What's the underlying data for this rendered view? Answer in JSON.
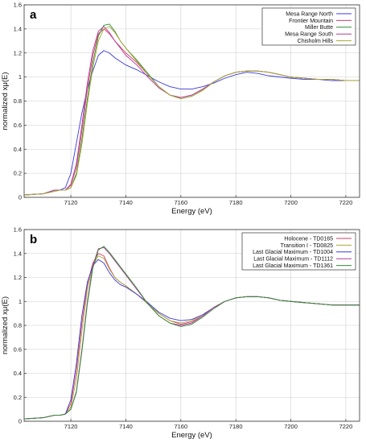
{
  "chart_data": [
    {
      "panel_label": "a",
      "type": "line",
      "xlabel": "Energy    (eV)",
      "ylabel": "normalized xμ(E)",
      "xlim": [
        7103,
        7225
      ],
      "ylim": [
        0,
        1.6
      ],
      "xticks": [
        "7120",
        "7140",
        "7160",
        "7180",
        "7200",
        "7220"
      ],
      "yticks": [
        "0",
        "0.2",
        "0.4",
        "0.6",
        "0.8",
        "1",
        "1.2",
        "1.4",
        "1.6"
      ],
      "grid": true,
      "legend_position": "top-right",
      "series": [
        {
          "name": "Mesa Range North",
          "color": "#3a3ad8",
          "x": [
            7103,
            7110,
            7114,
            7116,
            7118,
            7120,
            7122,
            7124,
            7126,
            7128,
            7130,
            7132,
            7134,
            7136,
            7138,
            7140,
            7144,
            7148,
            7152,
            7156,
            7160,
            7164,
            7168,
            7172,
            7176,
            7180,
            7184,
            7188,
            7192,
            7196,
            7200,
            7205,
            7210,
            7215,
            7220,
            7225
          ],
          "y": [
            0.02,
            0.03,
            0.06,
            0.06,
            0.08,
            0.2,
            0.45,
            0.7,
            0.9,
            1.05,
            1.18,
            1.22,
            1.2,
            1.16,
            1.13,
            1.1,
            1.06,
            1.01,
            0.96,
            0.92,
            0.9,
            0.9,
            0.92,
            0.95,
            0.99,
            1.02,
            1.04,
            1.03,
            1.01,
            1.0,
            0.99,
            0.98,
            0.98,
            0.97,
            0.97,
            0.97
          ]
        },
        {
          "name": "Frontier Mountain",
          "color": "#d63a6a",
          "x": [
            7103,
            7110,
            7114,
            7116,
            7118,
            7120,
            7122,
            7124,
            7126,
            7128,
            7130,
            7132,
            7134,
            7136,
            7138,
            7140,
            7144,
            7148,
            7152,
            7156,
            7160,
            7164,
            7168,
            7172,
            7176,
            7180,
            7184,
            7188,
            7192,
            7196,
            7200,
            7205,
            7210,
            7215,
            7220,
            7225
          ],
          "y": [
            0.02,
            0.03,
            0.06,
            0.06,
            0.06,
            0.1,
            0.25,
            0.55,
            0.9,
            1.18,
            1.36,
            1.4,
            1.36,
            1.3,
            1.25,
            1.2,
            1.12,
            1.02,
            0.92,
            0.85,
            0.83,
            0.85,
            0.9,
            0.96,
            1.01,
            1.04,
            1.05,
            1.05,
            1.04,
            1.02,
            1.0,
            0.99,
            0.98,
            0.98,
            0.97,
            0.97
          ]
        },
        {
          "name": "Miller Butte",
          "color": "#2e8b2e",
          "x": [
            7103,
            7110,
            7114,
            7116,
            7118,
            7120,
            7122,
            7124,
            7126,
            7128,
            7130,
            7132,
            7134,
            7136,
            7138,
            7140,
            7144,
            7148,
            7152,
            7156,
            7160,
            7164,
            7168,
            7172,
            7176,
            7180,
            7184,
            7188,
            7192,
            7196,
            7200,
            7205,
            7210,
            7215,
            7220,
            7225
          ],
          "y": [
            0.02,
            0.03,
            0.05,
            0.06,
            0.06,
            0.08,
            0.2,
            0.48,
            0.82,
            1.12,
            1.34,
            1.43,
            1.44,
            1.38,
            1.3,
            1.24,
            1.14,
            1.03,
            0.92,
            0.85,
            0.82,
            0.84,
            0.89,
            0.96,
            1.01,
            1.04,
            1.05,
            1.05,
            1.04,
            1.02,
            1.0,
            0.99,
            0.98,
            0.98,
            0.97,
            0.97
          ]
        },
        {
          "name": "Mesa Range South",
          "color": "#b03a9a",
          "x": [
            7103,
            7110,
            7114,
            7116,
            7118,
            7120,
            7122,
            7124,
            7126,
            7128,
            7130,
            7132,
            7134,
            7136,
            7138,
            7140,
            7144,
            7148,
            7152,
            7156,
            7160,
            7164,
            7168,
            7172,
            7176,
            7180,
            7184,
            7188,
            7192,
            7196,
            7200,
            7205,
            7210,
            7215,
            7220,
            7225
          ],
          "y": [
            0.02,
            0.03,
            0.06,
            0.06,
            0.06,
            0.11,
            0.28,
            0.6,
            0.95,
            1.22,
            1.38,
            1.42,
            1.37,
            1.3,
            1.24,
            1.18,
            1.1,
            1.0,
            0.91,
            0.85,
            0.83,
            0.85,
            0.9,
            0.96,
            1.01,
            1.04,
            1.05,
            1.05,
            1.04,
            1.02,
            1.0,
            0.99,
            0.98,
            0.98,
            0.97,
            0.97
          ]
        },
        {
          "name": "Chisholm Hills",
          "color": "#a8a832",
          "x": [
            7103,
            7110,
            7114,
            7116,
            7118,
            7120,
            7122,
            7124,
            7126,
            7128,
            7130,
            7132,
            7134,
            7136,
            7138,
            7140,
            7144,
            7148,
            7152,
            7156,
            7160,
            7164,
            7168,
            7172,
            7176,
            7180,
            7184,
            7188,
            7192,
            7196,
            7200,
            7205,
            7210,
            7215,
            7220,
            7225
          ],
          "y": [
            0.02,
            0.03,
            0.05,
            0.06,
            0.06,
            0.08,
            0.18,
            0.44,
            0.78,
            1.08,
            1.3,
            1.4,
            1.42,
            1.37,
            1.3,
            1.24,
            1.13,
            1.02,
            0.92,
            0.85,
            0.82,
            0.84,
            0.89,
            0.96,
            1.01,
            1.04,
            1.05,
            1.05,
            1.04,
            1.02,
            1.0,
            0.99,
            0.98,
            0.98,
            0.97,
            0.97
          ]
        }
      ]
    },
    {
      "panel_label": "b",
      "type": "line",
      "xlabel": "Energy    (eV)",
      "ylabel": "normalized xμ(E)",
      "xlim": [
        7103,
        7225
      ],
      "ylim": [
        0,
        1.6
      ],
      "xticks": [
        "7120",
        "7140",
        "7160",
        "7180",
        "7200",
        "7220"
      ],
      "yticks": [
        "0",
        "0.2",
        "0.4",
        "0.6",
        "0.8",
        "1",
        "1.2",
        "1.4",
        "1.6"
      ],
      "grid": true,
      "legend_position": "top-right",
      "series": [
        {
          "name": "Holocene - TD0165",
          "color": "#d63a6a",
          "x": [
            7103,
            7110,
            7114,
            7116,
            7118,
            7120,
            7122,
            7124,
            7126,
            7128,
            7130,
            7132,
            7134,
            7136,
            7138,
            7140,
            7144,
            7148,
            7152,
            7156,
            7160,
            7164,
            7168,
            7172,
            7176,
            7180,
            7184,
            7188,
            7192,
            7196,
            7200,
            7205,
            7210,
            7215,
            7220,
            7225
          ],
          "y": [
            0.02,
            0.03,
            0.05,
            0.05,
            0.06,
            0.15,
            0.42,
            0.82,
            1.14,
            1.32,
            1.4,
            1.38,
            1.28,
            1.2,
            1.16,
            1.13,
            1.06,
            0.98,
            0.9,
            0.84,
            0.81,
            0.83,
            0.88,
            0.95,
            1.0,
            1.03,
            1.04,
            1.04,
            1.03,
            1.01,
            1.0,
            0.99,
            0.98,
            0.97,
            0.97,
            0.97
          ]
        },
        {
          "name": "Transition I - TD0825",
          "color": "#a8a832",
          "x": [
            7103,
            7110,
            7114,
            7116,
            7118,
            7120,
            7122,
            7124,
            7126,
            7128,
            7130,
            7132,
            7134,
            7136,
            7138,
            7140,
            7144,
            7148,
            7152,
            7156,
            7160,
            7164,
            7168,
            7172,
            7176,
            7180,
            7184,
            7188,
            7192,
            7196,
            7200,
            7205,
            7210,
            7215,
            7220,
            7225
          ],
          "y": [
            0.02,
            0.03,
            0.05,
            0.05,
            0.06,
            0.12,
            0.35,
            0.75,
            1.1,
            1.3,
            1.38,
            1.36,
            1.27,
            1.2,
            1.16,
            1.13,
            1.06,
            0.98,
            0.9,
            0.84,
            0.82,
            0.84,
            0.89,
            0.95,
            1.0,
            1.03,
            1.04,
            1.04,
            1.03,
            1.01,
            1.0,
            0.99,
            0.98,
            0.97,
            0.97,
            0.97
          ]
        },
        {
          "name": "Last Glacial Maximum - TD1004",
          "color": "#3a3ad8",
          "x": [
            7103,
            7110,
            7114,
            7116,
            7118,
            7120,
            7122,
            7124,
            7126,
            7128,
            7130,
            7132,
            7134,
            7136,
            7138,
            7140,
            7144,
            7148,
            7152,
            7156,
            7160,
            7164,
            7168,
            7172,
            7176,
            7180,
            7184,
            7188,
            7192,
            7196,
            7200,
            7205,
            7210,
            7215,
            7220,
            7225
          ],
          "y": [
            0.02,
            0.03,
            0.05,
            0.05,
            0.06,
            0.18,
            0.48,
            0.88,
            1.16,
            1.3,
            1.35,
            1.32,
            1.24,
            1.18,
            1.14,
            1.12,
            1.06,
            0.99,
            0.91,
            0.86,
            0.84,
            0.85,
            0.89,
            0.95,
            1.0,
            1.03,
            1.04,
            1.04,
            1.03,
            1.01,
            1.0,
            0.99,
            0.98,
            0.97,
            0.97,
            0.97
          ]
        },
        {
          "name": "Last Glacial Maximum - TD1112",
          "color": "#b03a9a",
          "x": [
            7103,
            7110,
            7114,
            7116,
            7118,
            7120,
            7122,
            7124,
            7126,
            7128,
            7130,
            7132,
            7134,
            7136,
            7138,
            7140,
            7144,
            7148,
            7152,
            7156,
            7160,
            7164,
            7168,
            7172,
            7176,
            7180,
            7184,
            7188,
            7192,
            7196,
            7200,
            7205,
            7210,
            7215,
            7220,
            7225
          ],
          "y": [
            0.02,
            0.03,
            0.05,
            0.05,
            0.06,
            0.1,
            0.25,
            0.6,
            1.0,
            1.3,
            1.44,
            1.45,
            1.4,
            1.34,
            1.28,
            1.22,
            1.1,
            0.98,
            0.88,
            0.82,
            0.8,
            0.82,
            0.88,
            0.95,
            1.0,
            1.03,
            1.04,
            1.04,
            1.03,
            1.01,
            1.0,
            0.99,
            0.98,
            0.97,
            0.97,
            0.97
          ]
        },
        {
          "name": "Last Glacial Maximum - TD1361",
          "color": "#2e8b2e",
          "x": [
            7103,
            7110,
            7114,
            7116,
            7118,
            7120,
            7122,
            7124,
            7126,
            7128,
            7130,
            7132,
            7134,
            7136,
            7138,
            7140,
            7144,
            7148,
            7152,
            7156,
            7160,
            7164,
            7168,
            7172,
            7176,
            7180,
            7184,
            7188,
            7192,
            7196,
            7200,
            7205,
            7210,
            7215,
            7220,
            7225
          ],
          "y": [
            0.02,
            0.03,
            0.05,
            0.05,
            0.06,
            0.1,
            0.24,
            0.58,
            0.98,
            1.28,
            1.43,
            1.46,
            1.41,
            1.35,
            1.29,
            1.23,
            1.11,
            0.98,
            0.88,
            0.82,
            0.79,
            0.81,
            0.87,
            0.94,
            1.0,
            1.03,
            1.04,
            1.04,
            1.03,
            1.01,
            1.0,
            0.99,
            0.98,
            0.97,
            0.97,
            0.97
          ]
        }
      ]
    }
  ]
}
